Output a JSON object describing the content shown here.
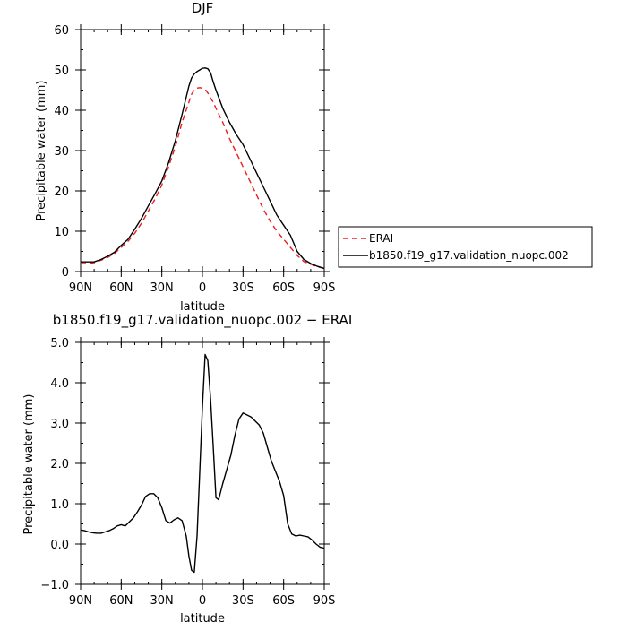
{
  "chart_data": [
    {
      "type": "line",
      "title": "DJF",
      "xlabel": "latitude",
      "ylabel": "Precipitable water (mm)",
      "xlim": [
        90,
        -90
      ],
      "ylim": [
        0,
        60
      ],
      "x_ticks": [
        90,
        60,
        30,
        0,
        -30,
        -60,
        -90
      ],
      "x_tick_labels": [
        "90N",
        "60N",
        "30N",
        "0",
        "30S",
        "60S",
        "90S"
      ],
      "y_ticks": [
        0,
        10,
        20,
        30,
        40,
        50,
        60
      ],
      "y_tick_labels": [
        "0",
        "10",
        "20",
        "30",
        "40",
        "50",
        "60"
      ],
      "grid": false,
      "legend_position": "right-bottom",
      "series": [
        {
          "name": "ERAI",
          "color": "#e8201e",
          "dash": "dashed",
          "x": [
            90,
            85,
            80,
            75,
            70,
            65,
            60,
            55,
            50,
            45,
            40,
            35,
            30,
            25,
            20,
            15,
            10,
            8,
            6,
            4,
            2,
            0,
            -2,
            -4,
            -6,
            -8,
            -10,
            -15,
            -20,
            -25,
            -30,
            -35,
            -40,
            -45,
            -50,
            -55,
            -60,
            -65,
            -70,
            -75,
            -80,
            -85,
            -90
          ],
          "y": [
            2.0,
            2.0,
            2.2,
            2.8,
            3.5,
            4.5,
            6.0,
            7.5,
            9.5,
            12.0,
            15.0,
            18.0,
            21.5,
            26.0,
            31.0,
            37.0,
            42.0,
            44.0,
            45.0,
            45.5,
            45.6,
            45.5,
            45.2,
            44.3,
            43.0,
            42.0,
            40.5,
            37.0,
            33.0,
            29.5,
            26.0,
            22.5,
            19.0,
            15.5,
            12.5,
            10.0,
            8.0,
            6.0,
            4.0,
            2.5,
            1.8,
            1.2,
            0.8
          ]
        },
        {
          "name": "b1850.f19_g17.validation_nuopc.002",
          "color": "#000000",
          "dash": "solid",
          "x": [
            90,
            85,
            80,
            75,
            70,
            65,
            60,
            55,
            50,
            45,
            40,
            35,
            30,
            25,
            20,
            15,
            10,
            8,
            6,
            4,
            2,
            0,
            -2,
            -4,
            -6,
            -8,
            -10,
            -15,
            -20,
            -25,
            -30,
            -35,
            -40,
            -45,
            -50,
            -55,
            -60,
            -65,
            -70,
            -75,
            -80,
            -85,
            -90
          ],
          "y": [
            2.4,
            2.4,
            2.4,
            3.0,
            3.8,
            4.8,
            6.5,
            8.0,
            10.5,
            13.2,
            16.3,
            19.3,
            22.5,
            27.0,
            32.5,
            39.0,
            46.0,
            48.0,
            49.0,
            49.6,
            50.0,
            50.4,
            50.5,
            50.3,
            49.3,
            47.0,
            45.0,
            40.5,
            37.0,
            34.0,
            31.5,
            28.0,
            24.5,
            21.0,
            17.5,
            14.0,
            11.5,
            9.0,
            5.0,
            3.0,
            2.0,
            1.3,
            0.8
          ]
        }
      ]
    },
    {
      "type": "line",
      "title": "b1850.f19_g17.validation_nuopc.002 − ERAI",
      "xlabel": "latitude",
      "ylabel": "Precipitable water (mm)",
      "xlim": [
        90,
        -90
      ],
      "ylim": [
        -1,
        5
      ],
      "x_ticks": [
        90,
        60,
        30,
        0,
        -30,
        -60,
        -90
      ],
      "x_tick_labels": [
        "90N",
        "60N",
        "30N",
        "0",
        "30S",
        "60S",
        "90S"
      ],
      "y_ticks": [
        -1,
        0,
        1,
        2,
        3,
        4,
        5
      ],
      "y_tick_labels": [
        "−1.0",
        "0.0",
        "1.0",
        "2.0",
        "3.0",
        "4.0",
        "5.0"
      ],
      "grid": false,
      "series": [
        {
          "color": "#000000",
          "dash": "solid",
          "x": [
            90,
            87,
            84,
            81,
            78,
            75,
            72,
            69,
            66,
            63,
            60,
            57,
            54,
            51,
            48,
            45,
            42,
            39,
            36,
            33,
            30,
            27,
            24,
            21,
            18,
            15,
            12,
            10,
            8,
            6,
            4,
            2,
            0,
            -2,
            -4,
            -6,
            -8,
            -10,
            -12,
            -15,
            -18,
            -21,
            -24,
            -27,
            -30,
            -33,
            -36,
            -39,
            -42,
            -45,
            -48,
            -51,
            -54,
            -57,
            -60,
            -63,
            -66,
            -69,
            -72,
            -75,
            -78,
            -81,
            -84,
            -87,
            -90
          ],
          "y": [
            0.35,
            0.33,
            0.3,
            0.28,
            0.27,
            0.27,
            0.3,
            0.33,
            0.38,
            0.45,
            0.48,
            0.45,
            0.55,
            0.65,
            0.8,
            0.97,
            1.18,
            1.25,
            1.25,
            1.15,
            0.9,
            0.58,
            0.52,
            0.6,
            0.65,
            0.58,
            0.2,
            -0.3,
            -0.65,
            -0.7,
            0.2,
            1.8,
            3.4,
            4.7,
            4.55,
            3.6,
            2.4,
            1.15,
            1.1,
            1.5,
            1.85,
            2.2,
            2.7,
            3.1,
            3.25,
            3.2,
            3.15,
            3.05,
            2.95,
            2.75,
            2.4,
            2.05,
            1.8,
            1.55,
            1.2,
            0.5,
            0.25,
            0.2,
            0.22,
            0.2,
            0.18,
            0.1,
            0.0,
            -0.08,
            -0.1
          ]
        }
      ]
    }
  ]
}
